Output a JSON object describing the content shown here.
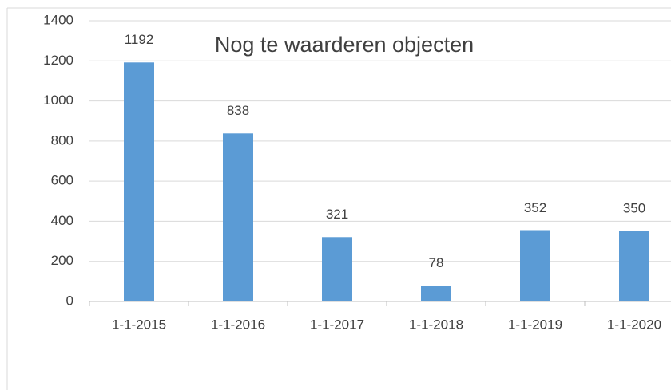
{
  "chart_data": {
    "type": "bar",
    "title": "Nog te waarderen objecten",
    "categories": [
      "1-1-2015",
      "1-1-2016",
      "1-1-2017",
      "1-1-2018",
      "1-1-2019",
      "1-1-2020"
    ],
    "values": [
      1192,
      838,
      321,
      78,
      352,
      350
    ],
    "color": "#5b9bd5",
    "ylim": [
      0,
      1400
    ],
    "yticks": [
      0,
      200,
      400,
      600,
      800,
      1000,
      1200,
      1400
    ],
    "grid": true
  }
}
